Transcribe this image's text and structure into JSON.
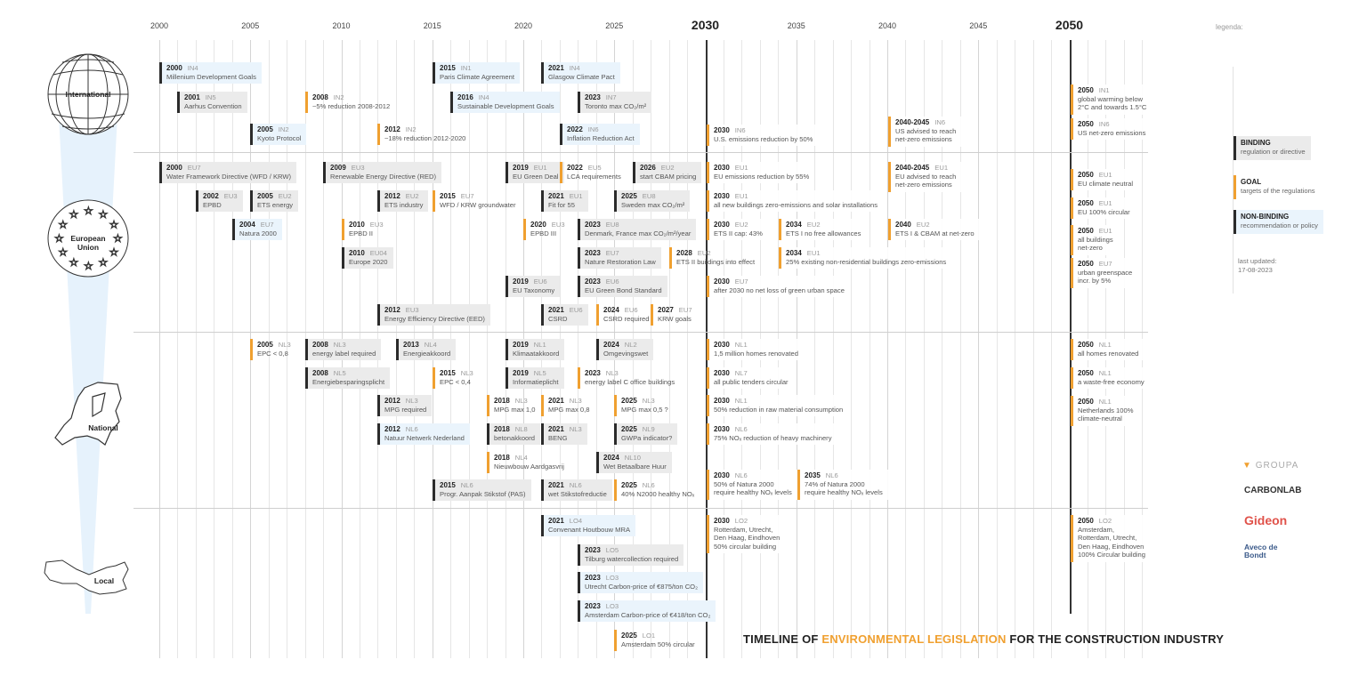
{
  "axis": {
    "years": [
      "2000",
      "2005",
      "2010",
      "2015",
      "2020",
      "2025",
      "2030",
      "2035",
      "2040",
      "2045",
      "2050"
    ],
    "major": [
      "2030",
      "2050"
    ],
    "range": [
      2000,
      2054
    ]
  },
  "colors": {
    "binding_bg": "#ebebeb",
    "nonbinding_bg": "#eaf4fc",
    "goal_bar": "#f0a030",
    "bar": "#2b2b2b",
    "cone": "#e6f2fc"
  },
  "sections": [
    {
      "label": "International",
      "icon": "globe-icon",
      "items": [
        {
          "year": "2000",
          "code": "IN4",
          "text": "Millenium Development Goals",
          "type": "nonbinding"
        },
        {
          "year": "2001",
          "code": "IN5",
          "text": "Aarhus Convention",
          "type": "binding"
        },
        {
          "year": "2005",
          "code": "IN2",
          "text": "Kyoto Protocol",
          "type": "nonbinding"
        },
        {
          "year": "2008",
          "code": "IN2",
          "text": "~5% reduction 2008-2012",
          "type": "goal"
        },
        {
          "year": "2012",
          "code": "IN2",
          "text": "~18% reduction 2012-2020",
          "type": "goal"
        },
        {
          "year": "2015",
          "code": "IN1",
          "text": "Paris Climate Agreement",
          "type": "nonbinding"
        },
        {
          "year": "2016",
          "code": "IN4",
          "text": "Sustainable Development Goals",
          "type": "nonbinding"
        },
        {
          "year": "2021",
          "code": "IN4",
          "text": "Glasgow Climate Pact",
          "type": "nonbinding"
        },
        {
          "year": "2023",
          "code": "IN7",
          "text": "Toronto max CO₂/m²",
          "type": "binding"
        },
        {
          "year": "2022",
          "code": "IN6",
          "text": "Inflation Reduction Act",
          "type": "nonbinding"
        },
        {
          "year": "2030",
          "code": "IN6",
          "text": "U.S. emissions reduction by 50%",
          "type": "goal"
        },
        {
          "year": "2040-2045",
          "code": "IN6",
          "text": "US advised to reach\nnet-zero emissions",
          "type": "goal"
        },
        {
          "year": "2050",
          "code": "IN1",
          "text": "global warming below\n2°C and towards 1.5°C",
          "type": "goal"
        },
        {
          "year": "2050",
          "code": "IN6",
          "text": "US net-zero emissions",
          "type": "goal"
        }
      ]
    },
    {
      "label": "European\nUnion",
      "icon": "eu-stars-icon",
      "items": [
        {
          "year": "2000",
          "code": "EU7",
          "text": "Water Framework Directive (WFD / KRW)",
          "type": "binding"
        },
        {
          "year": "2002",
          "code": "EU3",
          "text": "EPBD",
          "type": "binding"
        },
        {
          "year": "2005",
          "code": "EU2",
          "text": "ETS energy",
          "type": "binding"
        },
        {
          "year": "2004",
          "code": "EU7",
          "text": "Natura 2000",
          "type": "nonbinding"
        },
        {
          "year": "2009",
          "code": "EU3",
          "text": "Renewable Energy Directive (RED)",
          "type": "binding"
        },
        {
          "year": "2012",
          "code": "EU2",
          "text": "ETS industry",
          "type": "binding"
        },
        {
          "year": "2015",
          "code": "EU7",
          "text": "WFD / KRW groundwater",
          "type": "goal"
        },
        {
          "year": "2010",
          "code": "EU3",
          "text": "EPBD II",
          "type": "goal"
        },
        {
          "year": "2010",
          "code": "EU04",
          "text": "Europe 2020",
          "type": "binding"
        },
        {
          "year": "2012",
          "code": "EU3",
          "text": "Energy Efficiency Directive (EED)",
          "type": "binding"
        },
        {
          "year": "2019",
          "code": "EU1",
          "text": "EU Green Deal",
          "type": "binding"
        },
        {
          "year": "2022",
          "code": "EU5",
          "text": "LCA requirements",
          "type": "goal"
        },
        {
          "year": "2026",
          "code": "EU2",
          "text": "start CBAM pricing",
          "type": "binding"
        },
        {
          "year": "2021",
          "code": "EU1",
          "text": "Fit for 55",
          "type": "binding"
        },
        {
          "year": "2025",
          "code": "EU8",
          "text": "Sweden max CO₂/m²",
          "type": "binding"
        },
        {
          "year": "2020",
          "code": "EU3",
          "text": "EPBD III",
          "type": "goal"
        },
        {
          "year": "2023",
          "code": "EU8",
          "text": "Denmark, France max CO₂/m²/year",
          "type": "binding"
        },
        {
          "year": "2023",
          "code": "EU7",
          "text": "Nature Restoration Law",
          "type": "binding"
        },
        {
          "year": "2028",
          "code": "EU2",
          "text": "ETS II buildings into effect",
          "type": "goal"
        },
        {
          "year": "2019",
          "code": "EU6",
          "text": "EU Taxonomy",
          "type": "binding"
        },
        {
          "year": "2023",
          "code": "EU6",
          "text": "EU Green Bond Standard",
          "type": "binding"
        },
        {
          "year": "2021",
          "code": "EU6",
          "text": "CSRD",
          "type": "binding"
        },
        {
          "year": "2024",
          "code": "EU6",
          "text": "CSRD required",
          "type": "goal"
        },
        {
          "year": "2027",
          "code": "EU7",
          "text": "KRW goals",
          "type": "goal"
        },
        {
          "year": "2030",
          "code": "EU1",
          "text": "EU emissions reduction by 55%",
          "type": "goal"
        },
        {
          "year": "2030",
          "code": "EU1",
          "text": "all new buildings zero-emissions and solar installations",
          "type": "goal"
        },
        {
          "year": "2030",
          "code": "EU2",
          "text": "ETS II cap: 43%",
          "type": "goal"
        },
        {
          "year": "2034",
          "code": "EU2",
          "text": "ETS I no free allowances",
          "type": "goal"
        },
        {
          "year": "2040",
          "code": "EU2",
          "text": "ETS I & CBAM at net-zero",
          "type": "goal"
        },
        {
          "year": "2034",
          "code": "EU1",
          "text": "25% existing non-residential buildings zero-emissions",
          "type": "goal"
        },
        {
          "year": "2030",
          "code": "EU7",
          "text": "after 2030 no net loss of green urban space",
          "type": "goal"
        },
        {
          "year": "2040-2045",
          "code": "EU1",
          "text": "EU advised to reach\nnet-zero emissions",
          "type": "goal"
        },
        {
          "year": "2050",
          "code": "EU1",
          "text": "EU climate neutral",
          "type": "goal"
        },
        {
          "year": "2050",
          "code": "EU1",
          "text": "EU 100% circular",
          "type": "goal"
        },
        {
          "year": "2050",
          "code": "EU1",
          "text": "all buildings\nnet-zero",
          "type": "goal"
        },
        {
          "year": "2050",
          "code": "EU7",
          "text": "urban greenspace\nincr. by 5%",
          "type": "goal"
        }
      ]
    },
    {
      "label": "National",
      "icon": "netherlands-map-icon",
      "items": [
        {
          "year": "2005",
          "code": "NL3",
          "text": "EPC < 0,8",
          "type": "goal"
        },
        {
          "year": "2008",
          "code": "NL3",
          "text": "energy label required",
          "type": "binding"
        },
        {
          "year": "2013",
          "code": "NL4",
          "text": "Energieakkoord",
          "type": "binding"
        },
        {
          "year": "2019",
          "code": "NL1",
          "text": "Klimaatakkoord",
          "type": "binding"
        },
        {
          "year": "2024",
          "code": "NL2",
          "text": "Omgevingswet",
          "type": "binding"
        },
        {
          "year": "2008",
          "code": "NL5",
          "text": "Energiebesparingsplicht",
          "type": "binding"
        },
        {
          "year": "2015",
          "code": "NL3",
          "text": "EPC < 0,4",
          "type": "goal"
        },
        {
          "year": "2019",
          "code": "NL5",
          "text": "Informatieplicht",
          "type": "binding"
        },
        {
          "year": "2023",
          "code": "NL3",
          "text": "energy label C office buildings",
          "type": "goal"
        },
        {
          "year": "2012",
          "code": "NL3",
          "text": "MPG required",
          "type": "binding"
        },
        {
          "year": "2018",
          "code": "NL3",
          "text": "MPG max 1,0",
          "type": "goal"
        },
        {
          "year": "2021",
          "code": "NL3",
          "text": "MPG max 0,8",
          "type": "goal"
        },
        {
          "year": "2025",
          "code": "NL3",
          "text": "MPG max 0,5 ?",
          "type": "goal"
        },
        {
          "year": "2012",
          "code": "NL6",
          "text": "Natuur Netwerk Nederland",
          "type": "nonbinding"
        },
        {
          "year": "2018",
          "code": "NL8",
          "text": "betonakkoord",
          "type": "binding"
        },
        {
          "year": "2021",
          "code": "NL3",
          "text": "BENG",
          "type": "binding"
        },
        {
          "year": "2025",
          "code": "NL9",
          "text": "GWPa indicator?",
          "type": "binding"
        },
        {
          "year": "2018",
          "code": "NL4",
          "text": "Nieuwbouw Aardgasvrij",
          "type": "goal"
        },
        {
          "year": "2024",
          "code": "NL10",
          "text": "Wet Betaalbare Huur",
          "type": "binding"
        },
        {
          "year": "2015",
          "code": "NL6",
          "text": "Progr. Aanpak Stikstof (PAS)",
          "type": "binding"
        },
        {
          "year": "2021",
          "code": "NL6",
          "text": "wet Stikstofreductie",
          "type": "binding"
        },
        {
          "year": "2025",
          "code": "NL6",
          "text": "40% N2000 healthy NOₓ",
          "type": "goal"
        },
        {
          "year": "2030",
          "code": "NL1",
          "text": "1,5 million homes renovated",
          "type": "goal"
        },
        {
          "year": "2030",
          "code": "NL7",
          "text": "all public tenders circular",
          "type": "goal"
        },
        {
          "year": "2030",
          "code": "NL1",
          "text": "50% reduction in raw material consumption",
          "type": "goal"
        },
        {
          "year": "2030",
          "code": "NL6",
          "text": "75% NOₓ reduction of heavy machinery",
          "type": "goal"
        },
        {
          "year": "2030",
          "code": "NL6",
          "text": "50% of Natura 2000\nrequire healthy NOₓ levels",
          "type": "goal"
        },
        {
          "year": "2035",
          "code": "NL6",
          "text": "74% of Natura 2000\nrequire healthy NOₓ levels",
          "type": "goal"
        },
        {
          "year": "2050",
          "code": "NL1",
          "text": "all homes renovated",
          "type": "goal"
        },
        {
          "year": "2050",
          "code": "NL1",
          "text": "a waste-free economy",
          "type": "goal"
        },
        {
          "year": "2050",
          "code": "NL1",
          "text": "Netherlands 100%\nclimate-neutral",
          "type": "goal"
        }
      ]
    },
    {
      "label": "Local",
      "icon": "local-map-icon",
      "items": [
        {
          "year": "2021",
          "code": "LO4",
          "text": "Convenant Houtbouw MRA",
          "type": "nonbinding"
        },
        {
          "year": "2023",
          "code": "LO5",
          "text": "Tilburg watercollection required",
          "type": "binding"
        },
        {
          "year": "2023",
          "code": "LO3",
          "text": "Utrecht Carbon-price of €875/ton CO₂",
          "type": "nonbinding"
        },
        {
          "year": "2023",
          "code": "LO3",
          "text": "Amsterdam Carbon-price of €418/ton CO₂",
          "type": "nonbinding"
        },
        {
          "year": "2025",
          "code": "LO1",
          "text": "Amsterdam 50% circular",
          "type": "goal"
        },
        {
          "year": "2030",
          "code": "LO2",
          "text": "Rotterdam, Utrecht,\nDen Haag, Eindhoven\n50% circular building",
          "type": "goal"
        },
        {
          "year": "2050",
          "code": "LO2",
          "text": "Amsterdam,\nRotterdam, Utrecht,\nDen Haag, Eindhoven\n100% Circular building",
          "type": "goal"
        }
      ]
    }
  ],
  "legend": {
    "heading": "legenda:",
    "binding": {
      "title": "BINDING",
      "desc": "regulation or directive"
    },
    "goal": {
      "title": "GOAL",
      "desc": "targets of the regulations"
    },
    "nonbinding": {
      "title": "NON-BINDING",
      "desc": "recommendation or policy"
    },
    "updated_label": "last updated:",
    "updated_date": "17-08-2023"
  },
  "logos": [
    "GROUPA",
    "CARBONLAB",
    "Gideon",
    "Aveco de Bondt"
  ],
  "title": {
    "part1": "TIMELINE OF ",
    "highlight": "ENVIRONMENTAL LEGISLATION",
    "part2": " FOR THE CONSTRUCTION INDUSTRY"
  }
}
